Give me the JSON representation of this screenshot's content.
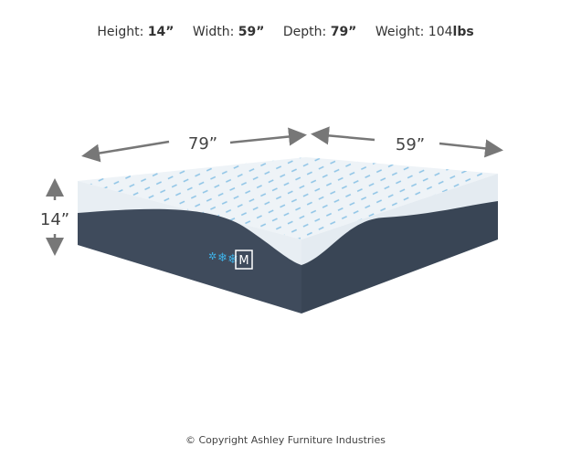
{
  "specs": [
    {
      "label": "Height:",
      "value": "14”"
    },
    {
      "label": "Width:",
      "value": "59”"
    },
    {
      "label": "Depth:",
      "value": "79”"
    },
    {
      "label": "Weight:",
      "value": "104",
      "unit": "lbs"
    }
  ],
  "dimensions": {
    "depth": "79”",
    "width": "59”",
    "height": "14”"
  },
  "logo_text": "M",
  "copyright": "© Copyright Ashley Furniture Industries",
  "colors": {
    "cover": "#eef3f7",
    "quilt": "#4a9fd4",
    "base": "#3f4b5c",
    "arrow": "#777777"
  }
}
